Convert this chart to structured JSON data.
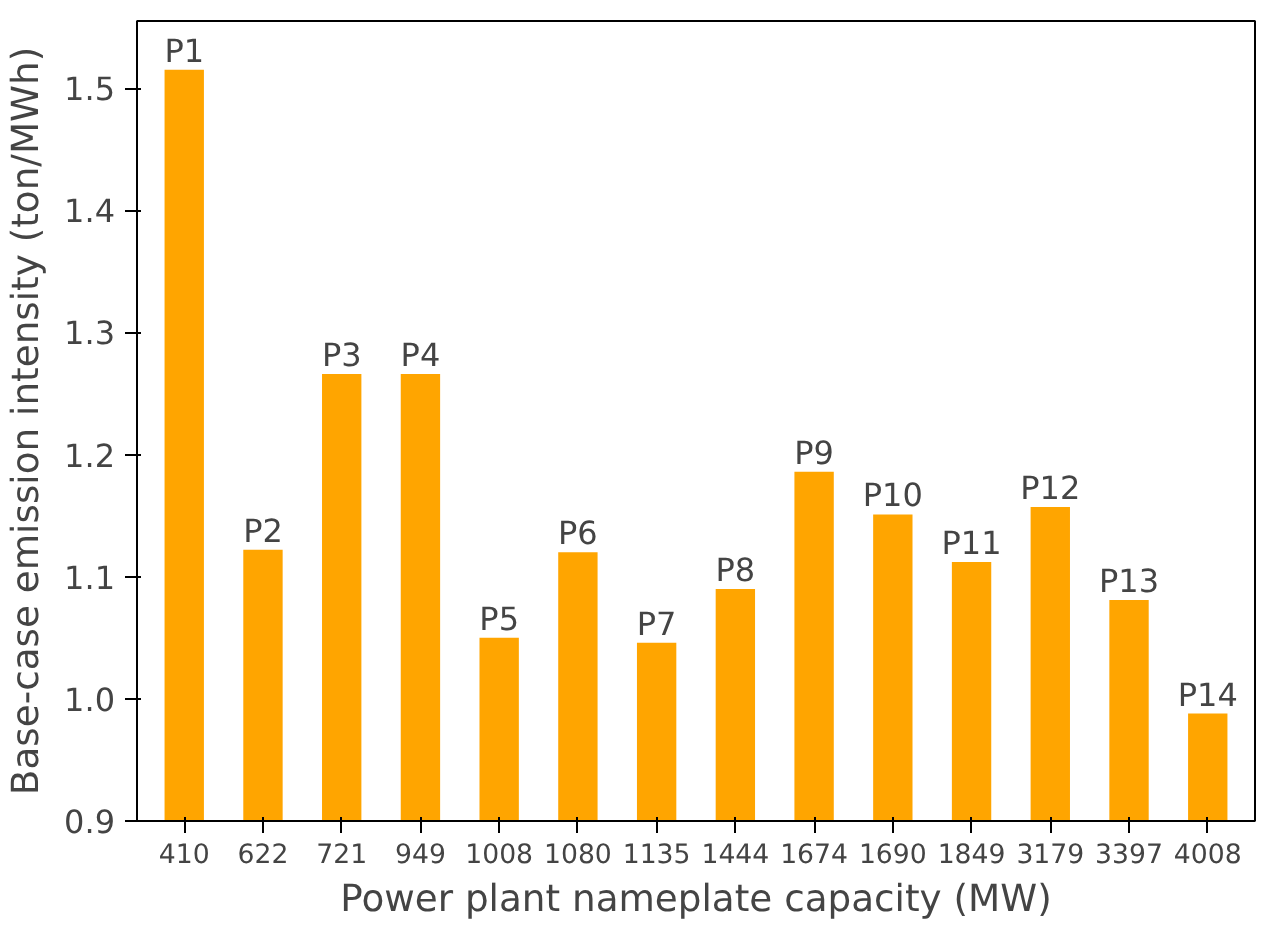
{
  "chart_data": {
    "type": "bar",
    "xlabel": "Power plant nameplate capacity (MW)",
    "ylabel": "Base-case emission intensity (ton/MWh)",
    "categories": [
      "410",
      "622",
      "721",
      "949",
      "1008",
      "1080",
      "1135",
      "1444",
      "1674",
      "1690",
      "1849",
      "3179",
      "3397",
      "4008"
    ],
    "values": [
      1.515,
      1.122,
      1.266,
      1.266,
      1.05,
      1.12,
      1.046,
      1.09,
      1.186,
      1.151,
      1.112,
      1.157,
      1.081,
      0.988
    ],
    "color": "#ffa500",
    "ylim": [
      0.9,
      1.555
    ],
    "yticks": [
      0.9,
      {
        "value": 1.0,
        "label": "1.0"
      },
      1.1,
      1.2,
      1.3,
      1.4,
      1.5
    ],
    "grid": false,
    "annotations": [
      {
        "text": "P1",
        "x": "410",
        "y": 1.515
      },
      {
        "text": "P2",
        "x": "622",
        "y": 1.122
      },
      {
        "text": "P3",
        "x": "721",
        "y": 1.266
      },
      {
        "text": "P4",
        "x": "949",
        "y": 1.266
      },
      {
        "text": "P5",
        "x": "1008",
        "y": 1.05
      },
      {
        "text": "P6",
        "x": "1080",
        "y": 1.12
      },
      {
        "text": "P7",
        "x": "1135",
        "y": 1.046
      },
      {
        "text": "P8",
        "x": "1444",
        "y": 1.09
      },
      {
        "text": "P9",
        "x": "1674",
        "y": 1.186
      },
      {
        "text": "P10",
        "x": "1690",
        "y": 1.151
      },
      {
        "text": "P11",
        "x": "1849",
        "y": 1.112
      },
      {
        "text": "P12",
        "x": "3179",
        "y": 1.157
      },
      {
        "text": "P13",
        "x": "3397",
        "y": 1.081
      },
      {
        "text": "P14",
        "x": "4008",
        "y": 0.988
      }
    ]
  }
}
